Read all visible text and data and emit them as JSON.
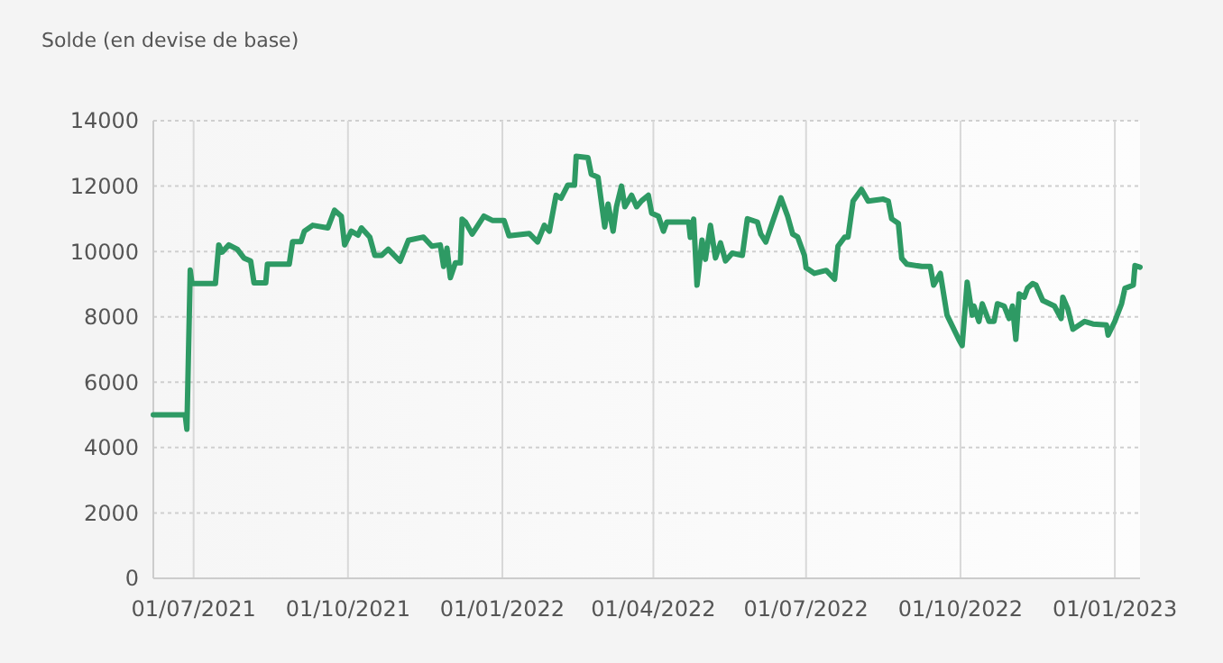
{
  "chart_data": {
    "type": "line",
    "title": "Solde (en devise de base)",
    "x": [
      "2021-06-07",
      "2021-06-26",
      "2021-06-27",
      "2021-06-29",
      "2021-06-30",
      "2021-07-14",
      "2021-07-16",
      "2021-07-18",
      "2021-07-22",
      "2021-07-27",
      "2021-07-31",
      "2021-08-04",
      "2021-08-06",
      "2021-08-13",
      "2021-08-14",
      "2021-08-27",
      "2021-08-29",
      "2021-09-03",
      "2021-09-05",
      "2021-09-10",
      "2021-09-19",
      "2021-09-23",
      "2021-09-27",
      "2021-09-29",
      "2021-10-03",
      "2021-10-07",
      "2021-10-09",
      "2021-10-14",
      "2021-10-17",
      "2021-10-21",
      "2021-10-25",
      "2021-11-01",
      "2021-11-06",
      "2021-11-15",
      "2021-11-20",
      "2021-11-25",
      "2021-11-27",
      "2021-11-29",
      "2021-12-01",
      "2021-12-04",
      "2021-12-07",
      "2021-12-08",
      "2021-12-10",
      "2021-12-14",
      "2021-12-21",
      "2021-12-26",
      "2022-01-02",
      "2022-01-05",
      "2022-01-17",
      "2022-01-22",
      "2022-01-26",
      "2022-01-29",
      "2022-02-02",
      "2022-02-05",
      "2022-02-09",
      "2022-02-13",
      "2022-02-14",
      "2022-02-21",
      "2022-02-23",
      "2022-02-27",
      "2022-03-03",
      "2022-03-05",
      "2022-03-08",
      "2022-03-10",
      "2022-03-13",
      "2022-03-15",
      "2022-03-19",
      "2022-03-22",
      "2022-03-25",
      "2022-03-29",
      "2022-03-31",
      "2022-04-04",
      "2022-04-07",
      "2022-04-09",
      "2022-04-22",
      "2022-04-23",
      "2022-04-25",
      "2022-04-27",
      "2022-04-30",
      "2022-05-02",
      "2022-05-05",
      "2022-05-08",
      "2022-05-11",
      "2022-05-14",
      "2022-05-18",
      "2022-05-24",
      "2022-05-27",
      "2022-06-02",
      "2022-06-04",
      "2022-06-07",
      "2022-06-11",
      "2022-06-16",
      "2022-06-20",
      "2022-06-23",
      "2022-06-26",
      "2022-06-30",
      "2022-07-01",
      "2022-07-06",
      "2022-07-13",
      "2022-07-18",
      "2022-07-20",
      "2022-07-24",
      "2022-07-26",
      "2022-07-29",
      "2022-08-03",
      "2022-08-07",
      "2022-08-16",
      "2022-08-19",
      "2022-08-21",
      "2022-08-25",
      "2022-08-27",
      "2022-08-30",
      "2022-09-08",
      "2022-09-13",
      "2022-09-15",
      "2022-09-19",
      "2022-09-21",
      "2022-09-23",
      "2022-09-30",
      "2022-10-02",
      "2022-10-05",
      "2022-10-08",
      "2022-10-09",
      "2022-10-12",
      "2022-10-14",
      "2022-10-18",
      "2022-10-21",
      "2022-10-23",
      "2022-10-27",
      "2022-10-30",
      "2022-11-01",
      "2022-11-03",
      "2022-11-05",
      "2022-11-08",
      "2022-11-10",
      "2022-11-13",
      "2022-11-15",
      "2022-11-19",
      "2022-11-26",
      "2022-11-30",
      "2022-12-01",
      "2022-12-04",
      "2022-12-07",
      "2022-12-14",
      "2022-12-19",
      "2022-12-27",
      "2022-12-28",
      "2023-01-01",
      "2023-01-05",
      "2023-01-07",
      "2023-01-12",
      "2023-01-13",
      "2023-01-16"
    ],
    "series": [
      {
        "color": "#2e9a64",
        "values": [
          5000,
          5000,
          4560,
          9430,
          9020,
          9020,
          10200,
          9980,
          10200,
          10070,
          9800,
          9710,
          9040,
          9040,
          9610,
          9610,
          10300,
          10300,
          10620,
          10800,
          10720,
          11260,
          11080,
          10200,
          10620,
          10500,
          10720,
          10440,
          9880,
          9880,
          10070,
          9700,
          10340,
          10440,
          10160,
          10200,
          9540,
          10100,
          9200,
          9650,
          9650,
          10990,
          10900,
          10530,
          11080,
          10950,
          10950,
          10480,
          10550,
          10290,
          10800,
          10620,
          11720,
          11630,
          12030,
          12030,
          12910,
          12870,
          12360,
          12270,
          10750,
          11450,
          10620,
          11370,
          12000,
          11370,
          11720,
          11370,
          11550,
          11720,
          11170,
          11080,
          10620,
          10900,
          10900,
          10430,
          10990,
          8970,
          10350,
          9760,
          10800,
          9800,
          10260,
          9710,
          9950,
          9880,
          11000,
          10900,
          10530,
          10290,
          10900,
          11640,
          11080,
          10530,
          10440,
          9880,
          9500,
          9330,
          9420,
          9150,
          10160,
          10440,
          10440,
          11540,
          11900,
          11540,
          11600,
          11540,
          11000,
          10860,
          9790,
          9610,
          9540,
          9540,
          8970,
          9330,
          8690,
          8050,
          7310,
          7120,
          9060,
          8050,
          8330,
          7860,
          8400,
          7860,
          7860,
          8400,
          8330,
          7950,
          8330,
          7310,
          8700,
          8600,
          8880,
          9020,
          8970,
          8500,
          8330,
          7950,
          8600,
          8240,
          7620,
          7860,
          7780,
          7750,
          7440,
          7860,
          8400,
          8870,
          8970,
          9570,
          9520
        ]
      }
    ],
    "xlim": [
      "2021-06-07",
      "2023-01-16"
    ],
    "xticks": [
      {
        "value": "2021-07-01",
        "label": "01/07/2021"
      },
      {
        "value": "2021-10-01",
        "label": "01/10/2021"
      },
      {
        "value": "2022-01-01",
        "label": "01/01/2022"
      },
      {
        "value": "2022-04-01",
        "label": "01/04/2022"
      },
      {
        "value": "2022-07-01",
        "label": "01/07/2022"
      },
      {
        "value": "2022-10-01",
        "label": "01/10/2022"
      },
      {
        "value": "2023-01-01",
        "label": "01/01/2023"
      }
    ],
    "ylim": [
      0,
      14000
    ],
    "yticks": [
      0,
      2000,
      4000,
      6000,
      8000,
      10000,
      12000,
      14000
    ],
    "grid": true,
    "line_style": "solid",
    "marker": "none"
  }
}
